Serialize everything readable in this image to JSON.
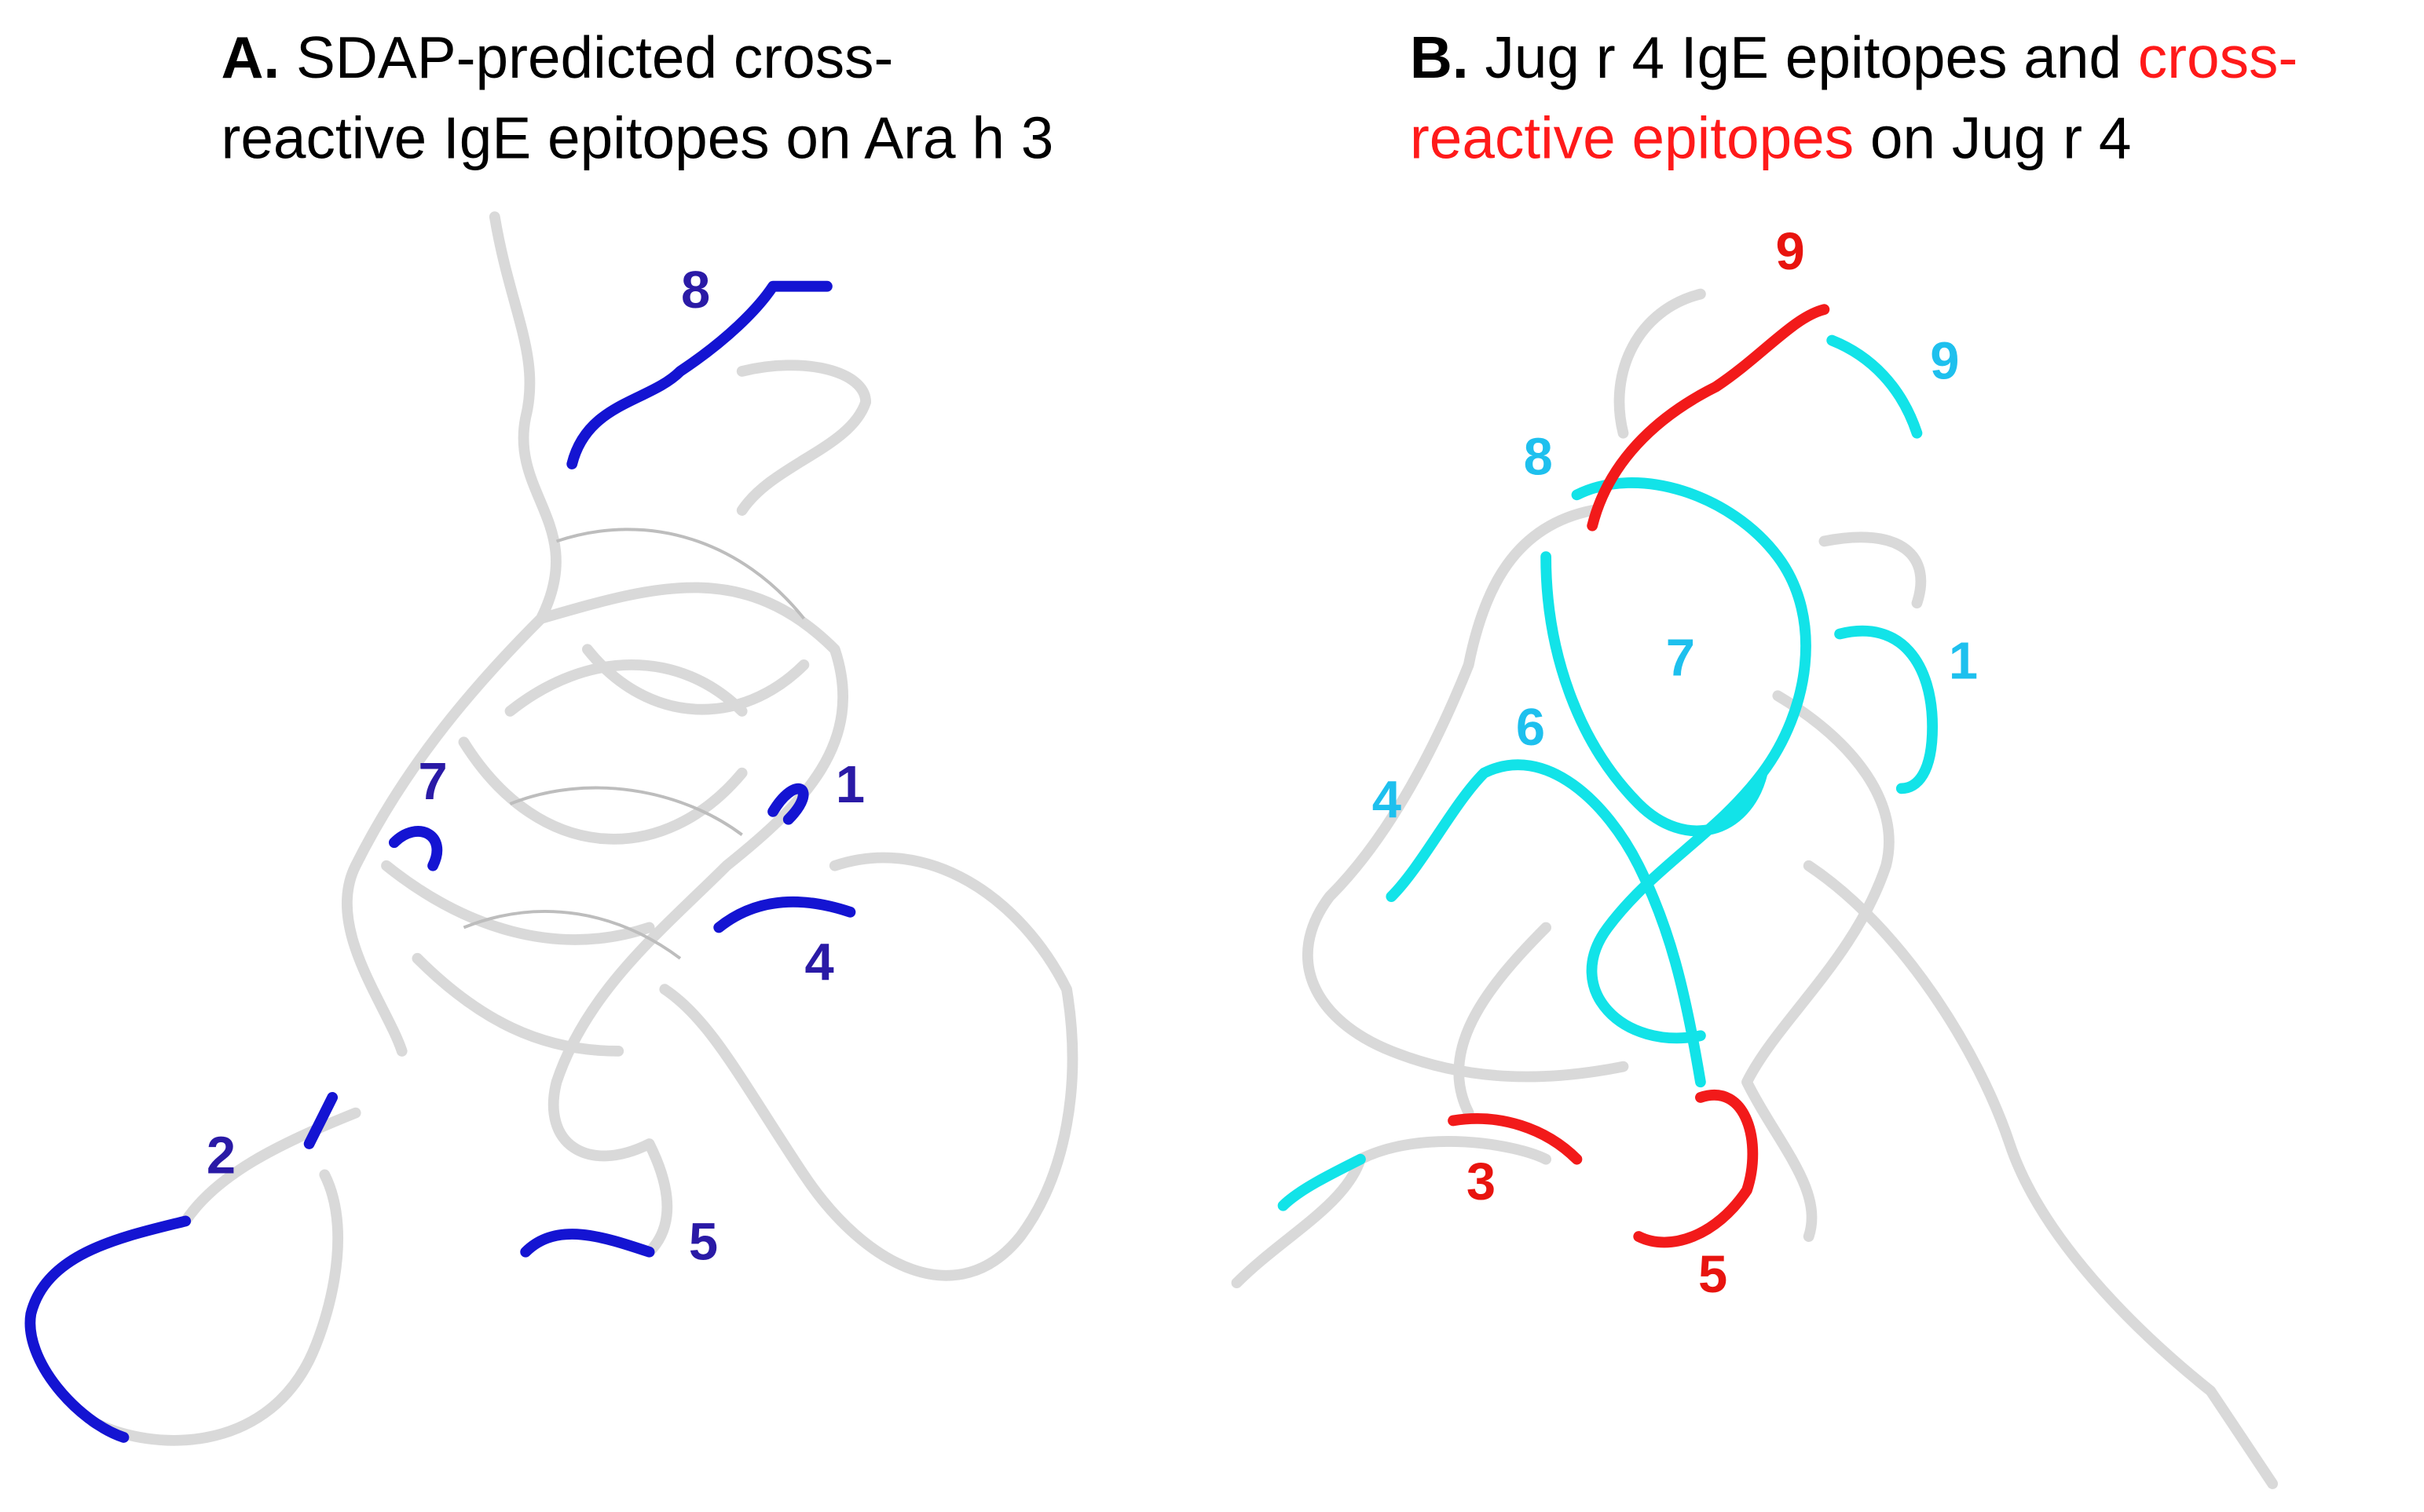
{
  "panels": [
    {
      "title": [
        [
          {
            "text": "A.",
            "bold": true,
            "color": "#000000"
          },
          {
            "text": " SDAP-predicted cross-",
            "bold": false,
            "color": "#000000"
          }
        ],
        [
          {
            "text": "reactive IgE epitopes on Ara h 3",
            "bold": false,
            "color": "#000000"
          }
        ]
      ],
      "labels": [
        {
          "text": "8",
          "color": "#2a1aa6"
        },
        {
          "text": "7",
          "color": "#2a1aa6"
        },
        {
          "text": "1",
          "color": "#2a1aa6"
        },
        {
          "text": "4",
          "color": "#2a1aa6"
        },
        {
          "text": "2",
          "color": "#2a1aa6"
        },
        {
          "text": "5",
          "color": "#2a1aa6"
        }
      ]
    },
    {
      "title": [
        [
          {
            "text": "B.",
            "bold": true,
            "color": "#000000"
          },
          {
            "text": " Jug r 4 IgE epitopes and ",
            "bold": false,
            "color": "#000000"
          },
          {
            "text": "cross-",
            "bold": false,
            "color": "#ff1a1a"
          }
        ],
        [
          {
            "text": "reactive epitopes",
            "bold": false,
            "color": "#ff1a1a"
          },
          {
            "text": " on Jug r 4",
            "bold": false,
            "color": "#000000"
          }
        ]
      ],
      "labels": [
        {
          "text": "9",
          "color": "#e8140f"
        },
        {
          "text": "9",
          "color": "#1ec0ee"
        },
        {
          "text": "8",
          "color": "#1ec0ee"
        },
        {
          "text": "1",
          "color": "#1ec0ee"
        },
        {
          "text": "7",
          "color": "#1ec0ee"
        },
        {
          "text": "6",
          "color": "#1ec0ee"
        },
        {
          "text": "4",
          "color": "#1ec0ee"
        },
        {
          "text": "3",
          "color": "#e8140f"
        },
        {
          "text": "5",
          "color": "#e8140f"
        }
      ]
    }
  ]
}
